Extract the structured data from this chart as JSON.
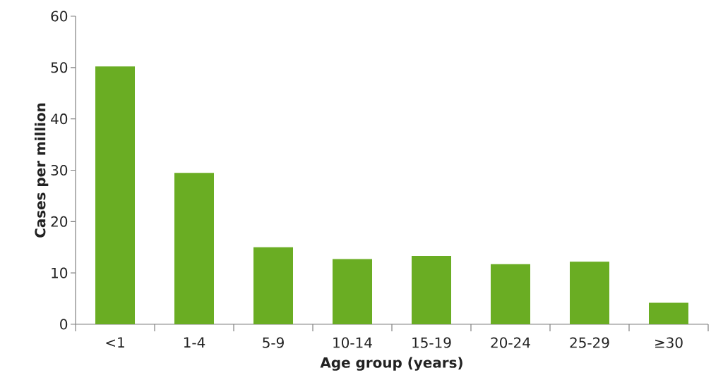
{
  "chart_data": {
    "type": "bar",
    "xlabel": "Age group (years)",
    "ylabel": "Cases per million",
    "categories": [
      "<1",
      "1-4",
      "5-9",
      "10-14",
      "15-19",
      "20-24",
      "25-29",
      "≥30"
    ],
    "values": [
      50.2,
      29.5,
      15.0,
      12.7,
      13.3,
      11.7,
      12.2,
      4.2
    ],
    "color": "#6aad23",
    "ylim": [
      0,
      60
    ],
    "yticks": [
      0,
      10,
      20,
      30,
      40,
      50,
      60
    ]
  }
}
